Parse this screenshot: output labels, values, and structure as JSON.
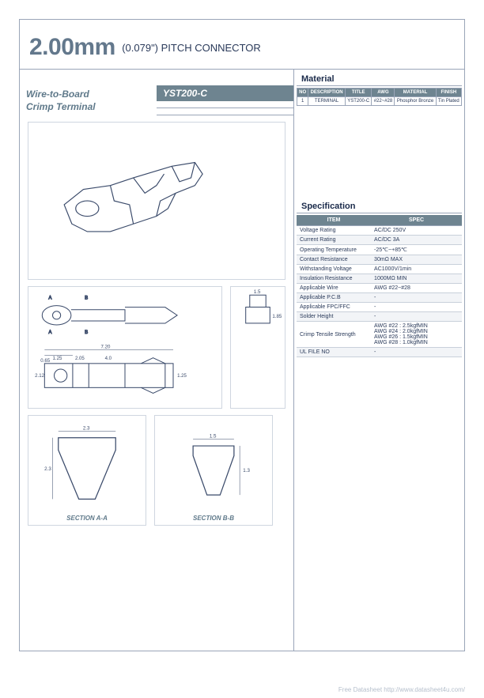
{
  "header": {
    "big": "2.00mm",
    "small": "(0.079\") PITCH CONNECTOR"
  },
  "product": {
    "name_line1": "Wire-to-Board",
    "name_line2": "Crimp Terminal",
    "code": "YST200-C"
  },
  "sections": {
    "aa": "SECTION A-A",
    "bb": "SECTION B-B"
  },
  "dims": {
    "aa_w": "2.3",
    "aa_h": "2.3",
    "bb_w": "1.5",
    "bb_h": "1.3",
    "side_h": "1.85",
    "side_top": "1.5",
    "top_len": "7.20",
    "top_a": "1.25",
    "top_b": "2.05",
    "top_c": "4.0",
    "top_left": "0.65",
    "top_w": "2.12",
    "top_h": "1.25"
  },
  "material": {
    "title": "Material",
    "headers": [
      "NO",
      "DESCRIPTION",
      "TITLE",
      "AWG",
      "MATERIAL",
      "FINISH"
    ],
    "rows": [
      [
        "1",
        "TERMINAL",
        "YST200-C",
        "#22~#28",
        "Phosphor Bronze",
        "Tin Plated"
      ]
    ]
  },
  "spec": {
    "title": "Specification",
    "headers": [
      "ITEM",
      "SPEC"
    ],
    "rows": [
      [
        "Voltage Rating",
        "AC/DC 250V"
      ],
      [
        "Current Rating",
        "AC/DC 3A"
      ],
      [
        "Operating Temperature",
        "-25℃~+85℃"
      ],
      [
        "Contact Resistance",
        "30mΩ MAX"
      ],
      [
        "Withstanding Voltage",
        "AC1000V/1min"
      ],
      [
        "Insulation Resistance",
        "1000MΩ MIN"
      ],
      [
        "Applicable Wire",
        "AWG #22~#28"
      ],
      [
        "Applicable P.C.B",
        "-"
      ],
      [
        "Applicable FPC/FFC",
        "-"
      ],
      [
        "Solder Height",
        "-"
      ],
      [
        "Crimp Tensile Strength",
        "AWG #22 : 2.5kgfMIN\nAWG #24 : 2.0kgfMIN\nAWG #26 : 1.5kgfMIN\nAWG #28 : 1.0kgfMIN"
      ],
      [
        "UL FILE NO",
        "-"
      ]
    ]
  },
  "footer": "Free Datasheet http://www.datasheet4u.com/",
  "colors": {
    "accent": "#6e8490",
    "border": "#9aa5b8",
    "text": "#1a2a4a",
    "label": "#5f798a"
  }
}
